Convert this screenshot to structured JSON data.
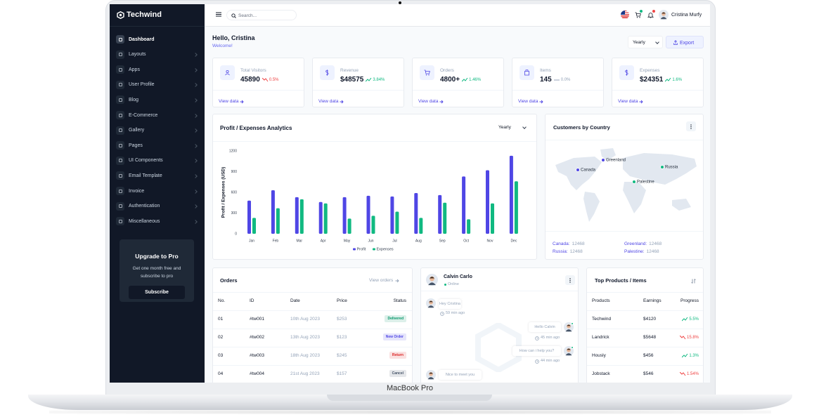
{
  "device_label": "MacBook Pro",
  "brand": "Techwind",
  "sidebar": {
    "active": 0,
    "menu": [
      "Dashboard",
      "Layouts",
      "Apps",
      "User Profile",
      "Blog",
      "E-Commerce",
      "Gallery",
      "Pages",
      "UI Components",
      "Email Template",
      "Invoice",
      "Authentication",
      "Miscellaneous"
    ],
    "upgrade": {
      "title": "Upgrade to Pro",
      "text": "Get one month free and subscribe to pro",
      "button": "Subscribe"
    }
  },
  "topbar": {
    "search_placeholder": "Search...",
    "user_name": "Cristina Murfy"
  },
  "header": {
    "greeting": "Hello, Cristina",
    "subtitle": "Welcome!",
    "period": "Yearly",
    "export": "Export"
  },
  "stats": [
    {
      "label": "Total Visitors",
      "value": "45890",
      "change": "0.5%",
      "trend": "down",
      "link": "View data"
    },
    {
      "label": "Revenue",
      "value": "$48575",
      "change": "3.84%",
      "trend": "up",
      "link": "View data"
    },
    {
      "label": "Orders",
      "value": "4800+",
      "change": "1.46%",
      "trend": "up",
      "link": "View data"
    },
    {
      "label": "Items",
      "value": "145",
      "change": "0.0%",
      "trend": "flat",
      "link": "View data"
    },
    {
      "label": "Expenses",
      "value": "$24351",
      "change": "1.6%",
      "trend": "up",
      "link": "View data"
    }
  ],
  "chart_data": {
    "type": "bar",
    "title": "Profit / Expenses Analytics",
    "period": "Yearly",
    "y_label": "Profit / Expenses (USD)",
    "categories": [
      "Jan",
      "Feb",
      "Mar",
      "Apr",
      "May",
      "Jun",
      "Jul",
      "Aug",
      "Sep",
      "Oct",
      "Nov",
      "Dec"
    ],
    "series": [
      {
        "name": "Profit",
        "color": "#4f46e5",
        "values": [
          480,
          630,
          530,
          460,
          530,
          550,
          540,
          590,
          560,
          830,
          920,
          1130
        ]
      },
      {
        "name": "Expenses",
        "color": "#10b981",
        "values": [
          230,
          370,
          500,
          440,
          220,
          260,
          320,
          230,
          450,
          210,
          440,
          760
        ]
      }
    ],
    "ylim": [
      0,
      1200
    ],
    "yticks": [
      0,
      300,
      600,
      900,
      1200
    ],
    "grid": false,
    "legend": "bottom"
  },
  "customers": {
    "title": "Customers by Country",
    "map_labels": [
      {
        "name": "Canada",
        "color": "#4f46e5"
      },
      {
        "name": "Greenland",
        "color": "#4f46e5"
      },
      {
        "name": "Russia",
        "color": "#10b981"
      },
      {
        "name": "Palestine",
        "color": "#10b981"
      }
    ],
    "stats": [
      {
        "label": "Canada:",
        "value": "12468"
      },
      {
        "label": "Russia:",
        "value": "12468"
      },
      {
        "label": "Greenland:",
        "value": "12468"
      },
      {
        "label": "Palestine:",
        "value": "12468"
      }
    ]
  },
  "orders": {
    "title": "Orders",
    "link": "View orders",
    "columns": [
      "No.",
      "ID",
      "Date",
      "Price",
      "Status"
    ],
    "rows": [
      {
        "no": "01",
        "id": "#tw001",
        "date": "10th Aug 2023",
        "price": "$253",
        "status": "Delivered",
        "status_color": "#059669"
      },
      {
        "no": "02",
        "id": "#tw002",
        "date": "13th Aug 2023",
        "price": "$123",
        "status": "New Order",
        "status_color": "#4f46e5"
      },
      {
        "no": "03",
        "id": "#tw003",
        "date": "18th Aug 2023",
        "price": "$245",
        "status": "Return",
        "status_color": "#dc2626"
      },
      {
        "no": "04",
        "id": "#tw004",
        "date": "21st Aug 2023",
        "price": "$157",
        "status": "Cancel",
        "status_color": "#475569"
      }
    ]
  },
  "chat": {
    "name": "Calvin Carlo",
    "status": "Online",
    "messages": [
      {
        "text": "Hey Cristina",
        "time": "59 min ago",
        "side": "left"
      },
      {
        "text": "Hello Calvin",
        "time": "45 min ago",
        "side": "right"
      },
      {
        "text": "How can i help you?",
        "time": "44 min ago",
        "side": "right"
      },
      {
        "text": "Nice to meet you",
        "side": "left"
      }
    ]
  },
  "products": {
    "title": "Top Products / Items",
    "columns": [
      "Products",
      "Earnings",
      "Progress"
    ],
    "rows": [
      {
        "name": "Techwind",
        "earnings": "$4120",
        "progress": "5.5%",
        "trend": "up"
      },
      {
        "name": "Landrick",
        "earnings": "$5648",
        "progress": "15.8%",
        "trend": "down"
      },
      {
        "name": "Hously",
        "earnings": "$456",
        "progress": "1.3%",
        "trend": "up"
      },
      {
        "name": "Jobstack",
        "earnings": "$546",
        "progress": "1.54%",
        "trend": "down"
      }
    ]
  }
}
